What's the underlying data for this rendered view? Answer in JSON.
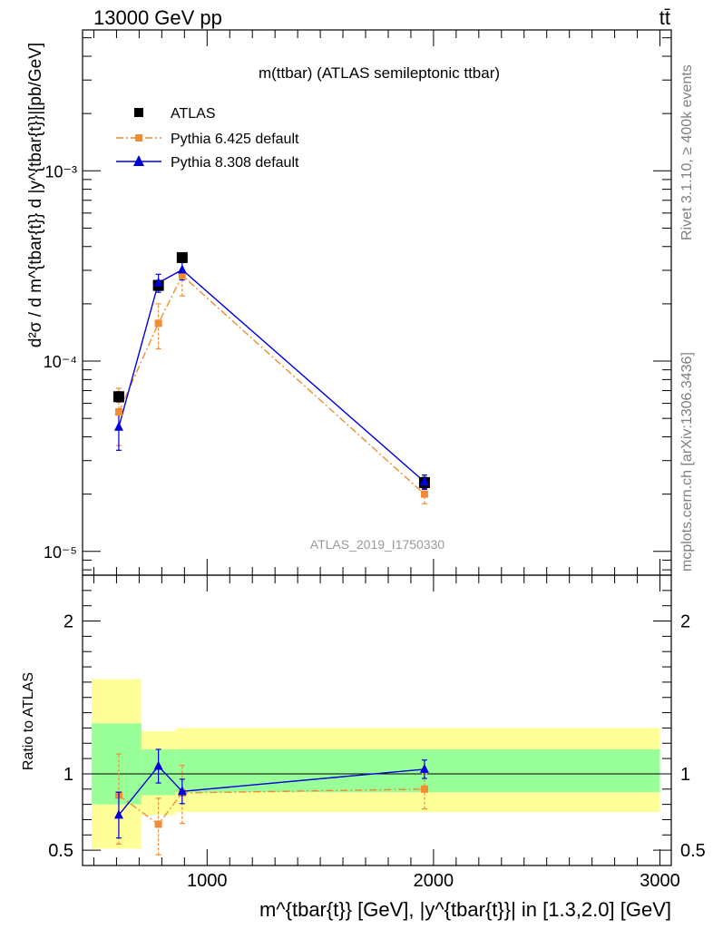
{
  "header": {
    "energy_label": "13000 GeV pp",
    "process_label": "tt̄"
  },
  "side_labels": {
    "rivet": "Rivet 3.1.10, ≥ 400k events",
    "mcplots": "mcplots.cern.ch [arXiv:1306.3436]"
  },
  "chart_data": [
    {
      "type": "scatter",
      "panel": "main",
      "title": "m(ttbar) (ATLAS semileptonic ttbar)",
      "watermark": "ATLAS_2019_I1750330",
      "ylabel": "d²σ / d m^{tbar{t}} d |y^{tbar{t}}|[pb/GeV]",
      "yscale": "log",
      "ylim": [
        7.5e-06,
        0.0055
      ],
      "xlim": [
        450,
        3050
      ],
      "y_ticks": [
        {
          "value": 1e-05,
          "label": "10⁻⁵"
        },
        {
          "value": 0.0001,
          "label": "10⁻⁴"
        },
        {
          "value": 0.001,
          "label": "10⁻³"
        }
      ],
      "legend_position": "top-left",
      "series": [
        {
          "name": "ATLAS",
          "marker": "square",
          "color": "#000000",
          "x": [
            610,
            785,
            890,
            1960
          ],
          "y": [
            6.5e-05,
            0.00025,
            0.00035,
            2.3e-05
          ],
          "err_low": [
            4e-06,
            1.5e-05,
            2e-05,
            1.5e-06
          ],
          "err_high": [
            4e-06,
            1.5e-05,
            2e-05,
            1.5e-06
          ]
        },
        {
          "name": "Pythia 6.425 default",
          "marker": "square",
          "color": "#f28c33",
          "line_style": "dash-dot",
          "x": [
            610,
            785,
            890,
            1960
          ],
          "y": [
            5.4e-05,
            0.000158,
            0.000282,
            2e-05
          ],
          "err_low": [
            1.8e-05,
            4.2e-05,
            6.2e-05,
            2.2e-06
          ],
          "err_high": [
            1.8e-05,
            4.2e-05,
            6.2e-05,
            2.2e-06
          ]
        },
        {
          "name": "Pythia 8.308 default",
          "marker": "triangle",
          "color": "#0000dd",
          "line_style": "solid",
          "x": [
            610,
            785,
            890,
            1960
          ],
          "y": [
            4.5e-05,
            0.000258,
            0.000302,
            2.32e-05
          ],
          "err_low": [
            1.1e-05,
            2.8e-05,
            3.5e-05,
            2e-06
          ],
          "err_high": [
            1.1e-05,
            2.8e-05,
            3.5e-05,
            2e-06
          ]
        }
      ]
    },
    {
      "type": "scatter",
      "panel": "ratio",
      "ylabel": "Ratio to ATLAS",
      "xlabel": "m^{tbar{t}} [GeV], |y^{tbar{t}}| in [1.3,2.0] [GeV]",
      "xlim": [
        450,
        3050
      ],
      "ylim": [
        0.4,
        2.3
      ],
      "x_ticks": [
        {
          "value": 1000,
          "label": "1000"
        },
        {
          "value": 2000,
          "label": "2000"
        },
        {
          "value": 3000,
          "label": "3000"
        }
      ],
      "y_ticks": [
        {
          "value": 0.5,
          "label": "0.5"
        },
        {
          "value": 1,
          "label": "1"
        },
        {
          "value": 2,
          "label": "2"
        }
      ],
      "bands": [
        {
          "x": [
            490,
            710
          ],
          "yellow": [
            0.51,
            1.62
          ],
          "green": [
            0.8,
            1.33
          ]
        },
        {
          "x": [
            710,
            860
          ],
          "yellow": [
            0.73,
            1.28
          ],
          "green": [
            0.86,
            1.16
          ]
        },
        {
          "x": [
            860,
            3000
          ],
          "yellow": [
            0.75,
            1.3
          ],
          "green": [
            0.88,
            1.16
          ]
        }
      ],
      "band_colors": {
        "yellow": "#ffff99",
        "green": "#99ff99"
      },
      "series": [
        {
          "name": "Pythia 6.425 default",
          "color": "#f28c33",
          "line_style": "dash-dot",
          "marker": "square",
          "x": [
            610,
            785,
            890,
            1960
          ],
          "y": [
            0.86,
            0.67,
            0.875,
            0.9
          ],
          "err_low": [
            0.32,
            0.2,
            0.2,
            0.13
          ],
          "err_high": [
            0.27,
            0.17,
            0.18,
            0.1
          ]
        },
        {
          "name": "Pythia 8.308 default",
          "color": "#0000dd",
          "line_style": "solid",
          "marker": "triangle",
          "x": [
            610,
            785,
            890,
            1960
          ],
          "y": [
            0.73,
            1.05,
            0.885,
            1.03
          ],
          "err_low": [
            0.15,
            0.11,
            0.08,
            0.06
          ],
          "err_high": [
            0.15,
            0.11,
            0.08,
            0.06
          ]
        }
      ]
    }
  ]
}
